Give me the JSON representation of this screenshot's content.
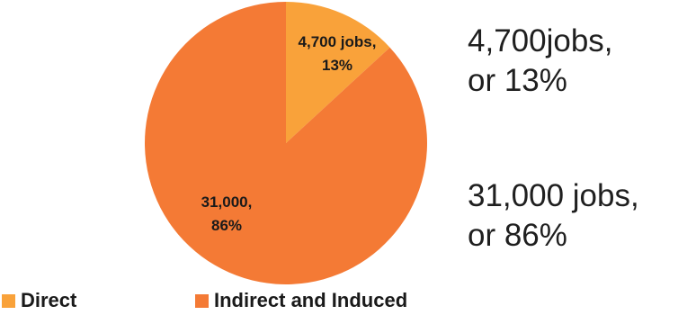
{
  "chart_data": {
    "type": "pie",
    "series": [
      {
        "name": "Direct",
        "value": 4700,
        "percent": 13,
        "label_lines": [
          "4,700 jobs,",
          "13%"
        ],
        "color": "#F9A23A"
      },
      {
        "name": "Indirect and Induced",
        "value": 31000,
        "percent": 86,
        "label_lines": [
          "31,000,",
          "86%"
        ],
        "color": "#F47A35"
      }
    ],
    "legend": {
      "placement": "bottom-left",
      "entries": [
        "Direct",
        "Indirect and Induced"
      ]
    }
  },
  "annotations": {
    "direct_line1": "4,700jobs,",
    "direct_line2": "or 13%",
    "indirect_line1": "31,000 jobs,",
    "indirect_line2": "or 86%"
  },
  "colors": {
    "direct": "#F9A23A",
    "indirect": "#F47A35",
    "text": "#1a1a1a"
  }
}
